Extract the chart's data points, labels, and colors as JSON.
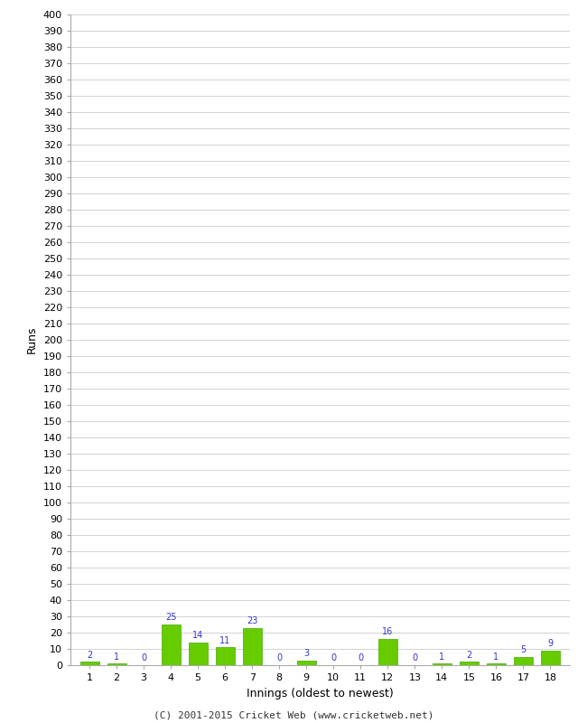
{
  "innings": [
    1,
    2,
    3,
    4,
    5,
    6,
    7,
    8,
    9,
    10,
    11,
    12,
    13,
    14,
    15,
    16,
    17,
    18
  ],
  "runs": [
    2,
    1,
    0,
    25,
    14,
    11,
    23,
    0,
    3,
    0,
    0,
    16,
    0,
    1,
    2,
    1,
    5,
    9
  ],
  "bar_color": "#66cc00",
  "bar_edge_color": "#44aa00",
  "label_color": "#3333cc",
  "xlabel": "Innings (oldest to newest)",
  "ylabel": "Runs",
  "ylim_max": 400,
  "ytick_step": 10,
  "background_color": "#ffffff",
  "grid_color": "#cccccc",
  "footer": "(C) 2001-2015 Cricket Web (www.cricketweb.net)",
  "label_fontsize": 7,
  "axis_tick_fontsize": 8,
  "axis_label_fontsize": 9,
  "footer_fontsize": 8
}
